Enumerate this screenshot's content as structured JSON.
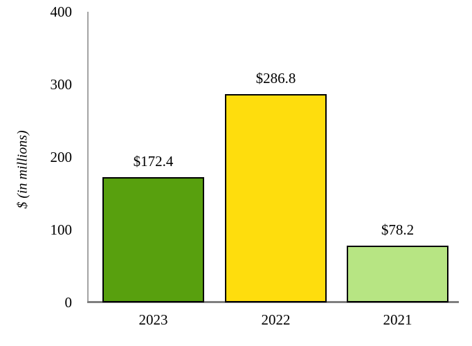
{
  "chart_data": {
    "type": "bar",
    "title": "",
    "xlabel": "",
    "ylabel": "$ (in millions)",
    "categories": [
      "2023",
      "2022",
      "2021"
    ],
    "values": [
      172.4,
      286.8,
      78.2
    ],
    "bar_labels": [
      "$172.4",
      "$286.8",
      "$78.2"
    ],
    "bar_colors": [
      "#58a00e",
      "#fedd0d",
      "#b7e583"
    ],
    "bar_border_color": "#000000",
    "ylim": [
      0,
      400
    ],
    "yticks": [
      0,
      100,
      200,
      300,
      400
    ],
    "grid": false,
    "legend": false,
    "axis_color_vertical": "#a3a3a3",
    "axis_color_horizontal": "#7f7f7f",
    "background_color": "#ffffff"
  }
}
